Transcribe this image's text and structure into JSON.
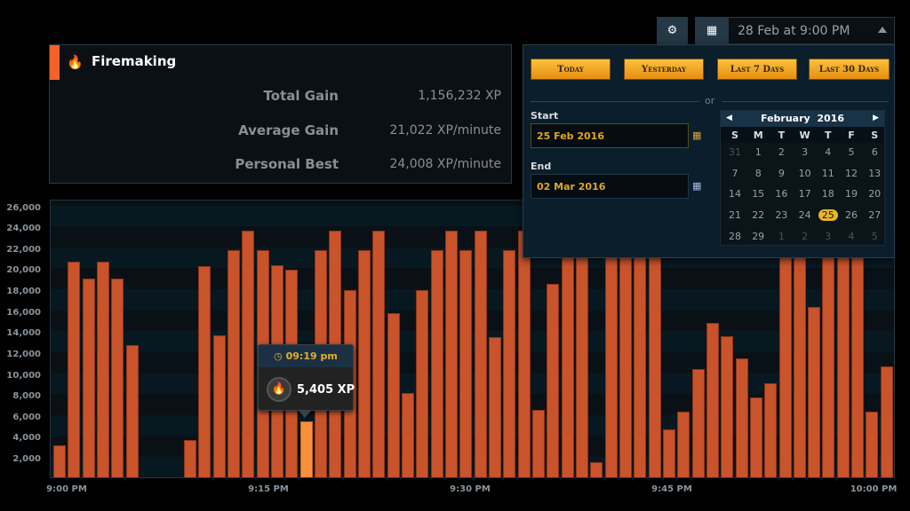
{
  "stats": {
    "skill": "Firemaking",
    "skill_icon": "campfire-icon",
    "rows": [
      {
        "label": "Total Gain",
        "value": "1,156,232 XP"
      },
      {
        "label": "Average Gain",
        "value": "21,022 XP/minute"
      },
      {
        "label": "Personal Best",
        "value": "24,008 XP/minute"
      }
    ]
  },
  "topbar": {
    "settings_icon": "gear-icon",
    "calendar_icon": "calendar-icon",
    "selected_date": "28 Feb at 9:00 PM"
  },
  "picker": {
    "presets": [
      "Today",
      "Yesterday",
      "Last 7 Days",
      "Last 30 Days"
    ],
    "or_label": "or",
    "start_label": "Start",
    "start_value": "25 Feb 2016",
    "end_label": "End",
    "end_value": "02 Mar 2016",
    "calendar": {
      "month": "February",
      "year": "2016",
      "weekdays": [
        "S",
        "M",
        "T",
        "W",
        "T",
        "F",
        "S"
      ],
      "weeks": [
        [
          "31",
          "1",
          "2",
          "3",
          "4",
          "5",
          "6"
        ],
        [
          "7",
          "8",
          "9",
          "10",
          "11",
          "12",
          "13"
        ],
        [
          "14",
          "15",
          "16",
          "17",
          "18",
          "19",
          "20"
        ],
        [
          "21",
          "22",
          "23",
          "24",
          "25",
          "26",
          "27"
        ],
        [
          "28",
          "29",
          "1",
          "2",
          "3",
          "4",
          "5"
        ]
      ],
      "selected_day": "25"
    }
  },
  "tooltip": {
    "time": "09:19 pm",
    "value": "5,405 XP"
  },
  "colors": {
    "bar": "#c9532a",
    "bar_highlight": "#f98f3a",
    "accent": "#f06428",
    "button": "#f5a623"
  },
  "chart_data": {
    "type": "bar",
    "ylim": [
      0,
      26000
    ],
    "yticks": [
      "2,000",
      "4,000",
      "6,000",
      "8,000",
      "10,000",
      "12,000",
      "14,000",
      "16,000",
      "18,000",
      "20,000",
      "22,000",
      "24,000",
      "26,000"
    ],
    "xticks": [
      "9:00 PM",
      "9:15 PM",
      "9:30 PM",
      "9:45 PM",
      "10:00 PM"
    ],
    "grid": "alternating horizontal bands",
    "highlighted_index": 17,
    "values": [
      3100,
      20600,
      19000,
      20600,
      19000,
      12700,
      0,
      0,
      0,
      3600,
      20200,
      13600,
      21700,
      23600,
      21700,
      20300,
      19900,
      5405,
      21700,
      23600,
      17900,
      21700,
      23600,
      15700,
      8100,
      17900,
      21700,
      23600,
      21700,
      23600,
      13400,
      21700,
      23600,
      6500,
      18500,
      22000,
      22000,
      1500,
      22000,
      22000,
      22000,
      22000,
      4600,
      6300,
      10400,
      14800,
      13500,
      11400,
      7700,
      9000,
      22000,
      22000,
      16300,
      22000,
      22000,
      22000,
      6300,
      10600
    ]
  }
}
